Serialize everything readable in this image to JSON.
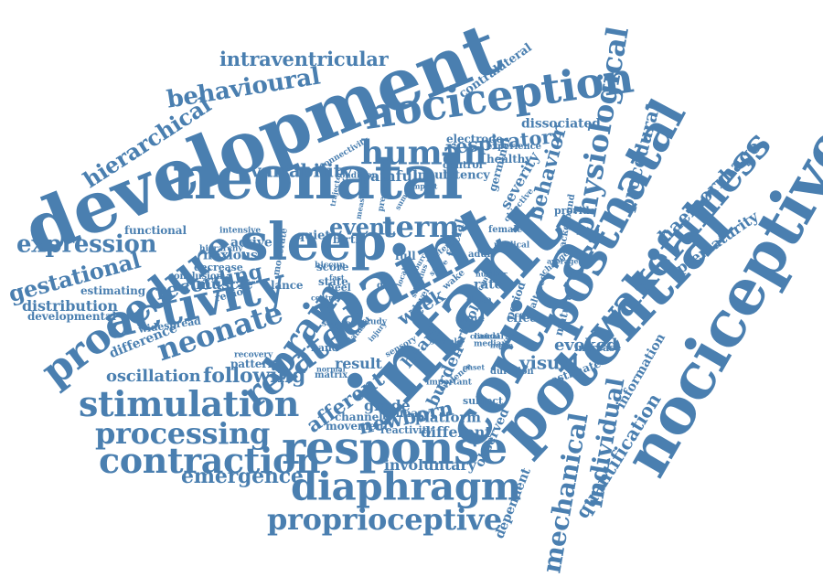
{
  "style": {
    "background": "#ffffff",
    "text_color": "#4a7fb0"
  },
  "words": [
    "development",
    "neonatal",
    "nociceptive",
    "paint",
    "infant",
    "potential",
    "cortical",
    "postnatal",
    "sleep",
    "activity",
    "nociception",
    "procedure",
    "response",
    "diaphragm",
    "stimulation",
    "contraction",
    "processing",
    "proprioceptive",
    "human",
    "brain",
    "related",
    "neonate",
    "wakefulness",
    "physiological",
    "emergence",
    "behavioural",
    "intraventricular",
    "hierarchical",
    "expression",
    "gestational",
    "variability",
    "event",
    "term",
    "mechanical",
    "individual",
    "quantification",
    "respiratory",
    "haemorrhage",
    "procedural",
    "prematurity",
    "behavior",
    "severity",
    "recording",
    "oscillation",
    "following",
    "afferent",
    "newborn",
    "week",
    "burden",
    "visual",
    "evoked",
    "distribution",
    "developmental",
    "dependent",
    "observed",
    "involuntary",
    "information",
    "dissociated",
    "contralateral",
    "electrode",
    "painful",
    "different",
    "muscle",
    "noxious",
    "active",
    "functional",
    "estimating",
    "conclusion",
    "difference",
    "widespread",
    "pattern",
    "result",
    "grade",
    "platform",
    "channel",
    "primary",
    "movement",
    "reactivity",
    "subject",
    "cortisol",
    "heart",
    "facial",
    "rate",
    "time",
    "effect",
    "mature",
    "increase",
    "estimate",
    "lance",
    "score",
    "heel",
    "state",
    "region",
    "decrease",
    "quiet",
    "birth",
    "moderate",
    "hierarchy",
    "intensive",
    "input",
    "latency",
    "control",
    "healthy",
    "experience",
    "germinal",
    "background",
    "provide",
    "female",
    "medical",
    "adult",
    "full",
    "day",
    "duration",
    "altered",
    "period",
    "change",
    "level",
    "delta",
    "caudal",
    "median",
    "sample",
    "sensory",
    "dataset",
    "matrix",
    "recovery",
    "hand",
    "severe",
    "study",
    "hiccup",
    "condition",
    "trajectory",
    "measure",
    "present",
    "summary",
    "impact",
    "connectivity",
    "average",
    "clinical",
    "important",
    "objective",
    "central",
    "normal",
    "injury",
    "evidence",
    "wake",
    "fast",
    "stage",
    "stimulus",
    "preterm",
    "source",
    "nurse",
    "onset",
    "spike",
    "local",
    "number",
    "cause"
  ]
}
